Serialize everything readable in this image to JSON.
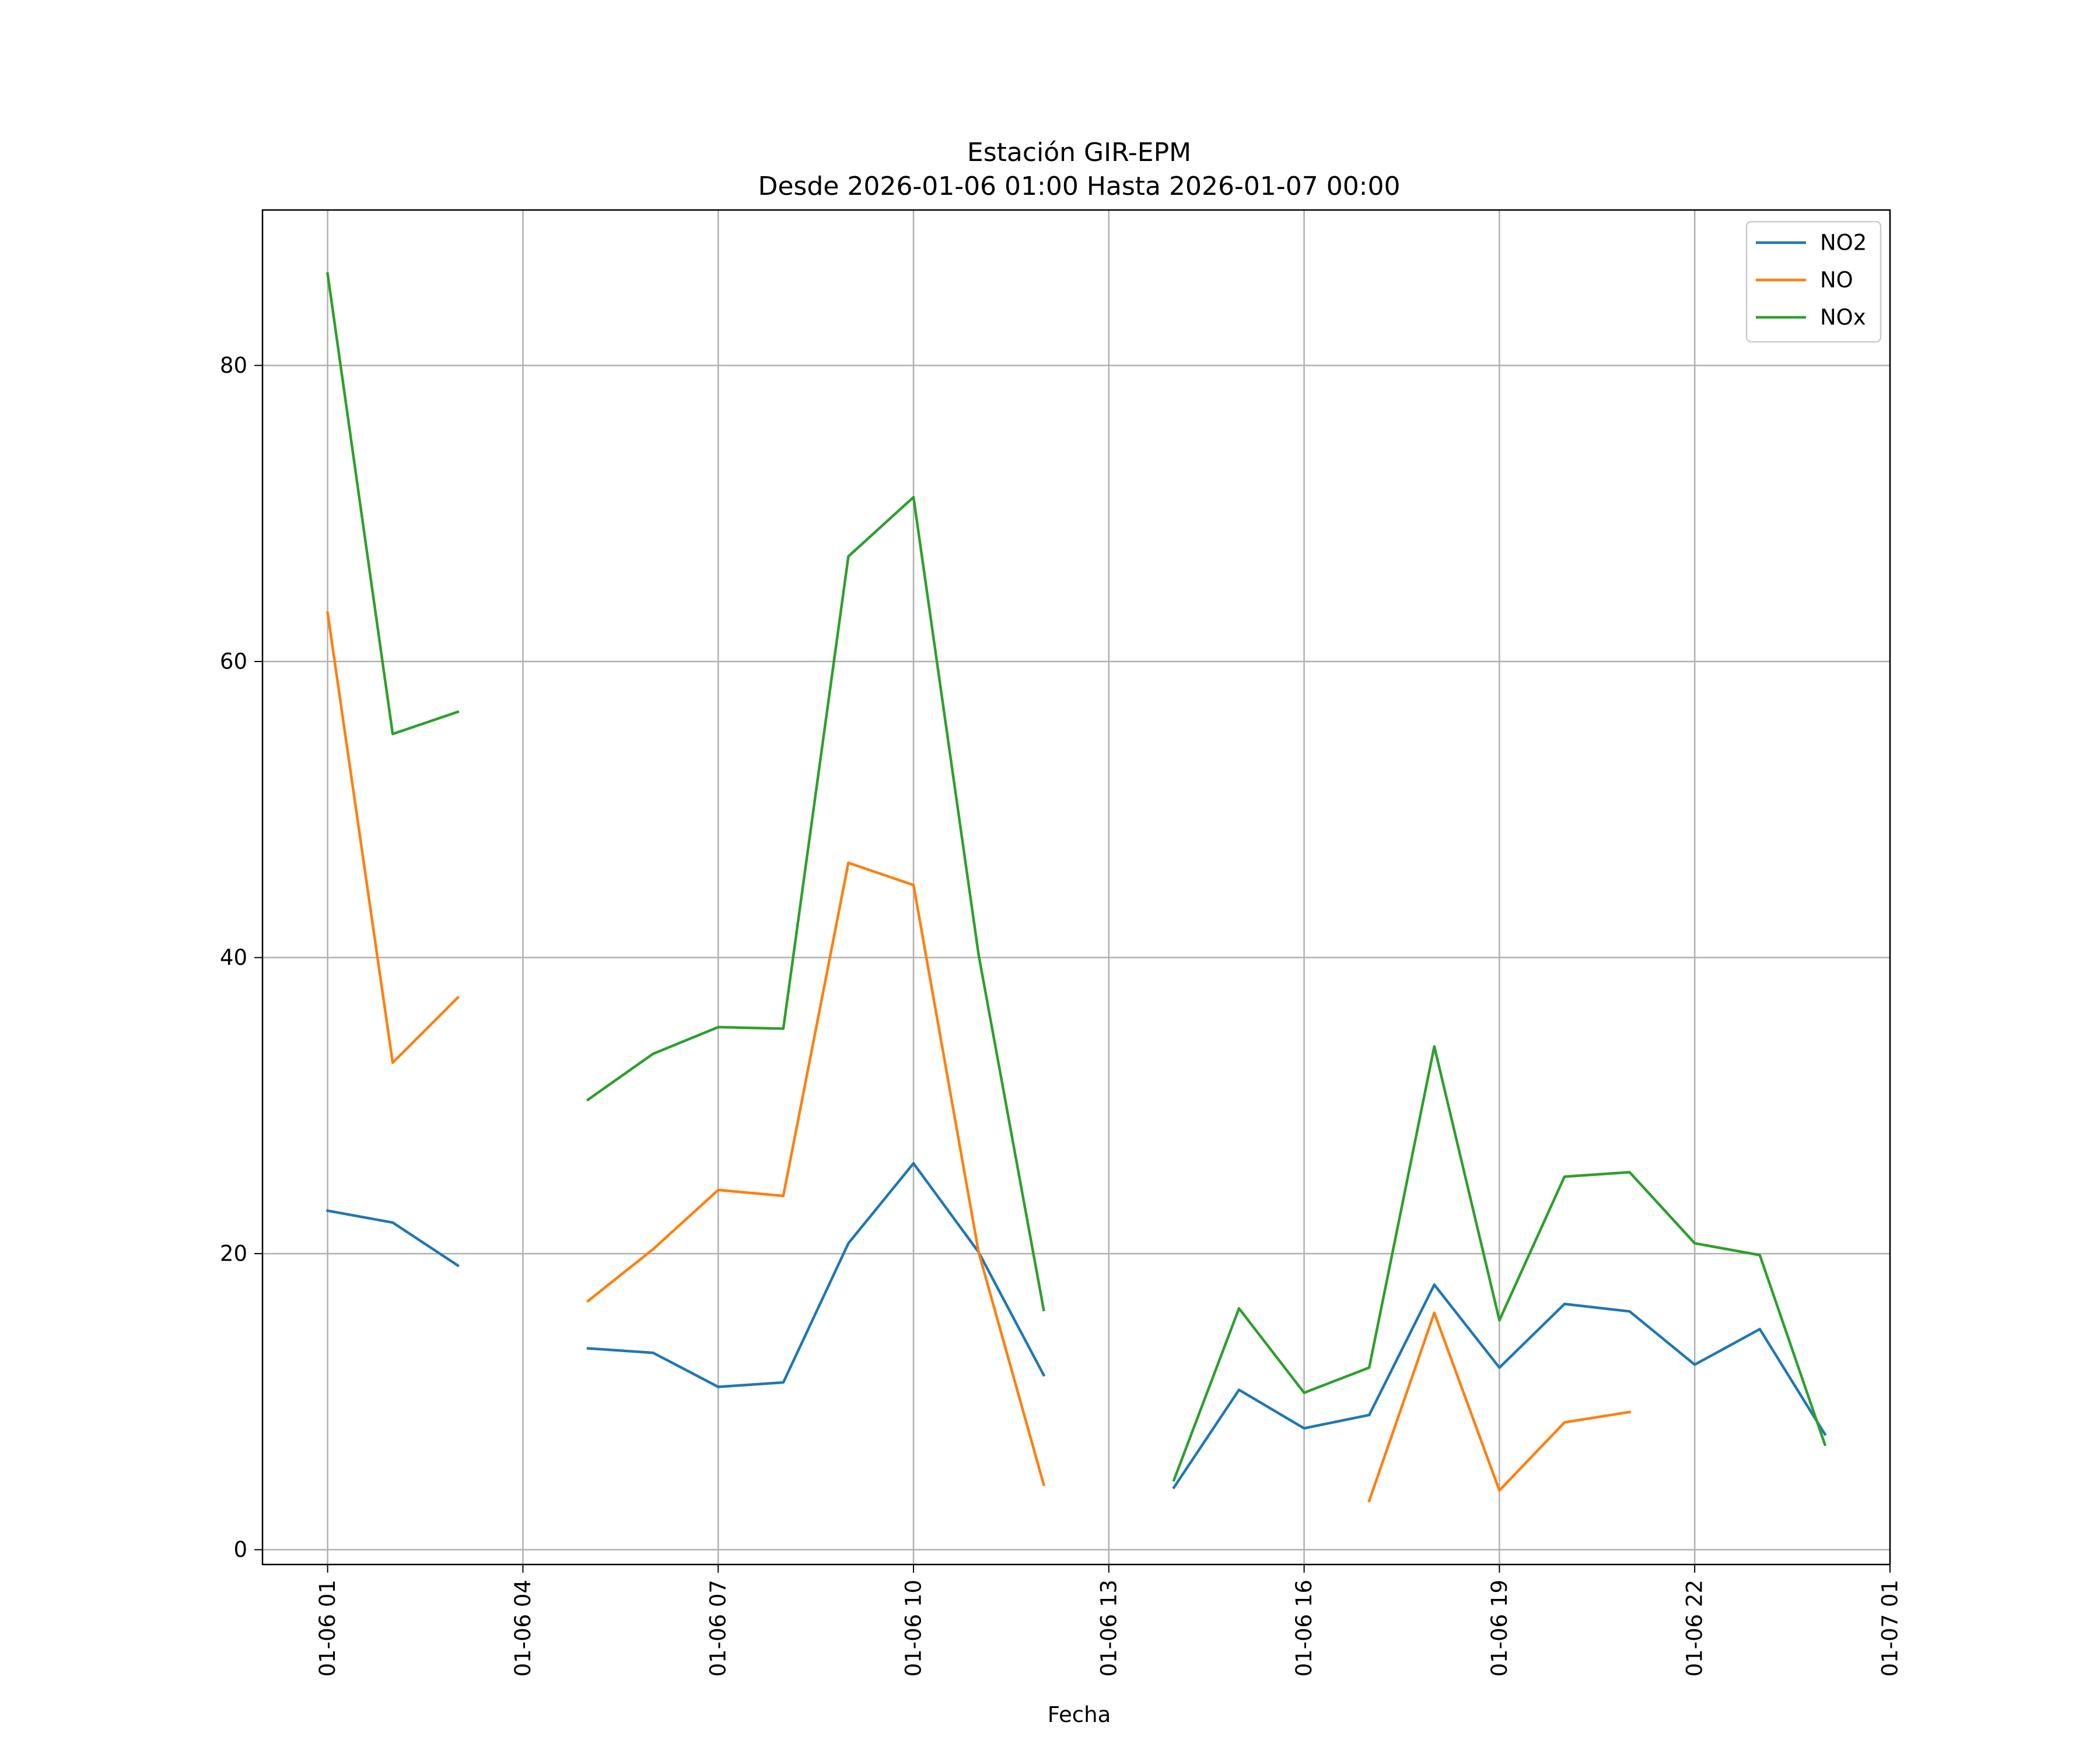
{
  "chart_data": {
    "type": "line",
    "title": "Estación GIR-EPM",
    "subtitle": "Desde 2026-01-06 01:00 Hasta 2026-01-07 00:00",
    "xlabel": "Fecha",
    "ylabel": "",
    "xlim": [
      "2026-01-06 00:00",
      "2026-01-07 01:00"
    ],
    "ylim": [
      -1,
      90.5
    ],
    "x_ticks": [
      "2026-01-06 01:00",
      "2026-01-06 04:00",
      "2026-01-06 07:00",
      "2026-01-06 10:00",
      "2026-01-06 13:00",
      "2026-01-06 16:00",
      "2026-01-06 19:00",
      "2026-01-06 22:00",
      "2026-01-07 01:00"
    ],
    "x_tick_labels": [
      "01-06 01",
      "01-06 04",
      "01-06 07",
      "01-06 10",
      "01-06 13",
      "01-06 16",
      "01-06 19",
      "01-06 22",
      "01-07 01"
    ],
    "y_ticks": [
      0,
      20,
      40,
      60,
      80
    ],
    "y_tick_labels": [
      "0",
      "20",
      "40",
      "60",
      "80"
    ],
    "grid": true,
    "legend_position": "top-right",
    "x": [
      "2026-01-06 01:00",
      "2026-01-06 02:00",
      "2026-01-06 03:00",
      "2026-01-06 04:00",
      "2026-01-06 05:00",
      "2026-01-06 06:00",
      "2026-01-06 07:00",
      "2026-01-06 08:00",
      "2026-01-06 09:00",
      "2026-01-06 10:00",
      "2026-01-06 11:00",
      "2026-01-06 12:00",
      "2026-01-06 13:00",
      "2026-01-06 14:00",
      "2026-01-06 15:00",
      "2026-01-06 16:00",
      "2026-01-06 17:00",
      "2026-01-06 18:00",
      "2026-01-06 19:00",
      "2026-01-06 20:00",
      "2026-01-06 21:00",
      "2026-01-06 22:00",
      "2026-01-06 23:00",
      "2026-01-07 00:00"
    ],
    "series": [
      {
        "name": "NO2",
        "color": "#1f77b4",
        "values": [
          22.9,
          22.1,
          19.2,
          null,
          13.6,
          13.3,
          11.0,
          11.3,
          20.7,
          26.1,
          20.1,
          11.8,
          null,
          4.2,
          10.8,
          8.2,
          9.1,
          17.9,
          12.3,
          16.6,
          16.1,
          12.5,
          14.9,
          7.8
        ]
      },
      {
        "name": "NO",
        "color": "#ff7f0e",
        "values": [
          63.3,
          32.9,
          37.3,
          null,
          16.8,
          20.3,
          24.3,
          23.9,
          46.4,
          44.9,
          20.1,
          4.4,
          null,
          null,
          null,
          null,
          3.3,
          16.0,
          4.0,
          8.6,
          9.3,
          null,
          null,
          null
        ]
      },
      {
        "name": "NOx",
        "color": "#2ca02c",
        "values": [
          86.2,
          55.1,
          56.6,
          null,
          30.4,
          33.5,
          35.3,
          35.2,
          67.1,
          71.1,
          40.2,
          16.2,
          null,
          4.7,
          16.3,
          10.6,
          12.3,
          34.0,
          15.5,
          25.2,
          25.5,
          20.7,
          19.9,
          7.1
        ]
      }
    ]
  }
}
